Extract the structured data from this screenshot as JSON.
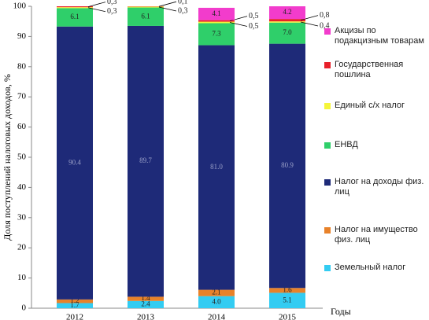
{
  "chart_data": {
    "type": "stacked_bar",
    "y_label": "Доля поступлений налоговых доходов, %",
    "x_label": "Годы",
    "categories": [
      "2012",
      "2013",
      "2014",
      "2015"
    ],
    "ylim": [
      0,
      100
    ],
    "yticks": [
      0,
      10,
      20,
      30,
      40,
      50,
      60,
      70,
      80,
      90,
      100
    ],
    "series": [
      {
        "name": "Земельный налог",
        "color": "#33ccf2",
        "values": [
          1.7,
          2.4,
          4.0,
          5.1
        ],
        "value_labels": [
          "1.7",
          "2.4",
          "4.0",
          "5.1"
        ],
        "label_position": "inside"
      },
      {
        "name": "Налог на имущество физ. лиц",
        "color": "#e8822a",
        "values": [
          1.2,
          1.4,
          2.1,
          1.6
        ],
        "value_labels": [
          "1.2",
          "1.4",
          "2.1",
          "1.6"
        ],
        "label_position": "inside"
      },
      {
        "name": "Налог на доходы физ. лиц",
        "color": "#1e2a78",
        "values": [
          90.4,
          89.7,
          81.0,
          80.9
        ],
        "value_labels": [
          "90.4",
          "89.7",
          "81.0",
          "80.9"
        ],
        "label_position": "inside"
      },
      {
        "name": "ЕНВД",
        "color": "#2fcf6a",
        "values": [
          6.1,
          6.1,
          7.3,
          7.0
        ],
        "value_labels": [
          "6.1",
          "6.1",
          "7.3",
          "7.0"
        ],
        "label_position": "inside"
      },
      {
        "name": "Единый с/х налог",
        "color": "#f5f53a",
        "values": [
          0.3,
          0.3,
          0.5,
          0.4
        ],
        "value_labels": [
          "0,3",
          "0,3",
          "0,5",
          "0,4"
        ],
        "label_position": "below"
      },
      {
        "name": "Государственная пошлина",
        "color": "#e8202a",
        "values": [
          0.3,
          0.1,
          0.5,
          0.8
        ],
        "value_labels": [
          "0,3",
          "0,1",
          "0,5",
          "0,8"
        ],
        "label_position": "above"
      },
      {
        "name": "Акцизы по подакцизным товарам",
        "color": "#f23ccc",
        "values": [
          0,
          0,
          4.1,
          4.2
        ],
        "value_labels": [
          null,
          null,
          "4.1",
          "4.2"
        ],
        "label_position": "inside"
      }
    ]
  }
}
